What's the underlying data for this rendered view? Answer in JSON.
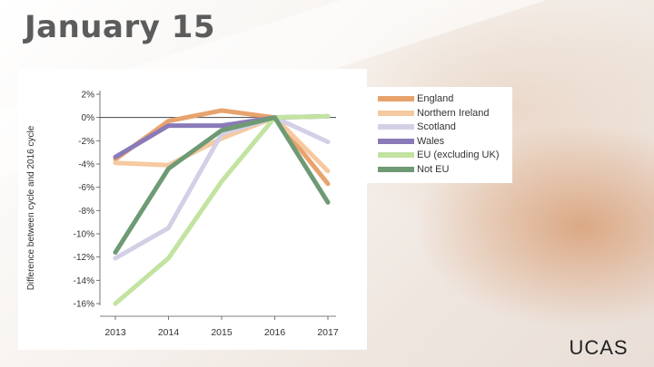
{
  "slide": {
    "title": "January 15",
    "logo_text": "UCAS"
  },
  "colors": {
    "England": "#e8a36c",
    "Northern Ireland": "#f6c9a0",
    "Scotland": "#d3d0e6",
    "Wales": "#8a7ab8",
    "EU (excluding UK)": "#c3e3a1",
    "Not EU": "#6e9a74"
  },
  "chart_data": {
    "type": "line",
    "title": "",
    "xlabel": "",
    "ylabel": "Difference between cycle and 2016 cycle",
    "x": [
      "2013",
      "2014",
      "2015",
      "2016",
      "2017"
    ],
    "ylim": [
      -16,
      2
    ],
    "yticks": [
      "2%",
      "0%",
      "-2%",
      "-4%",
      "-6%",
      "-8%",
      "-10%",
      "-12%",
      "-14%",
      "-16%"
    ],
    "ytick_values": [
      2,
      0,
      -2,
      -4,
      -6,
      -8,
      -10,
      -12,
      -14,
      -16
    ],
    "grid": false,
    "legend_position": "right",
    "series": [
      {
        "name": "England",
        "values": [
          -3.6,
          -0.3,
          0.6,
          0,
          -5.7
        ]
      },
      {
        "name": "Northern Ireland",
        "values": [
          -3.9,
          -4.1,
          -1.8,
          0,
          -4.6
        ]
      },
      {
        "name": "Scotland",
        "values": [
          -12.1,
          -9.5,
          -1.4,
          0,
          -2.1
        ]
      },
      {
        "name": "Wales",
        "values": [
          -3.4,
          -0.7,
          -0.7,
          0,
          0.1
        ]
      },
      {
        "name": "EU (excluding UK)",
        "values": [
          -16,
          -12.1,
          -5.5,
          0,
          0.1
        ]
      },
      {
        "name": "Not EU",
        "values": [
          -11.6,
          -4.4,
          -1.1,
          0,
          -7.3
        ]
      }
    ]
  }
}
